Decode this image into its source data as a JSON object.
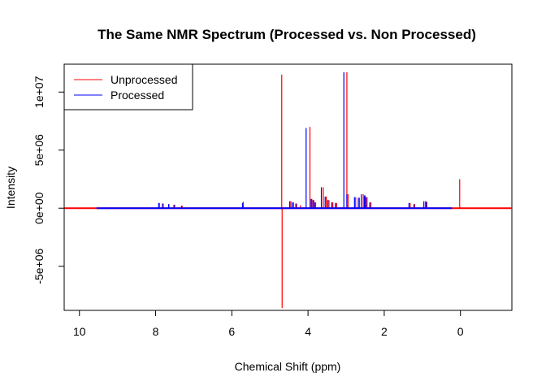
{
  "chart_data": {
    "type": "line",
    "title": "The Same NMR Spectrum (Processed vs. Non Processed)",
    "xlabel": "Chemical Shift (ppm)",
    "ylabel": "Intensity",
    "xlim": [
      10.4,
      -1.35
    ],
    "ylim": [
      -8800000,
      12400000
    ],
    "x_reversed": true,
    "x_ticks": [
      10,
      8,
      6,
      4,
      2,
      0
    ],
    "x_tick_labels": [
      "10",
      "8",
      "6",
      "4",
      "2",
      "0"
    ],
    "y_ticks": [
      -5000000,
      0,
      5000000,
      10000000
    ],
    "y_tick_labels": [
      "-5e+06",
      "0e+00",
      "5e+06",
      "1e+07"
    ],
    "grid": false,
    "legend_position": "top-left",
    "series": [
      {
        "name": "Unprocessed",
        "color": "#FF0000",
        "baseline_range": [
          10.4,
          -1.35
        ],
        "peaks": [
          [
            7.9,
            450000
          ],
          [
            7.8,
            400000
          ],
          [
            7.65,
            350000
          ],
          [
            7.5,
            300000
          ],
          [
            7.3,
            200000
          ],
          [
            5.7,
            550000
          ],
          [
            4.69,
            11500000
          ],
          [
            4.68,
            -8600000
          ],
          [
            4.45,
            600000
          ],
          [
            4.38,
            500000
          ],
          [
            4.3,
            400000
          ],
          [
            4.2,
            250000
          ],
          [
            3.95,
            7000000
          ],
          [
            3.9,
            800000
          ],
          [
            3.85,
            700000
          ],
          [
            3.8,
            500000
          ],
          [
            3.6,
            1800000
          ],
          [
            3.52,
            1000000
          ],
          [
            3.45,
            700000
          ],
          [
            3.35,
            500000
          ],
          [
            3.25,
            450000
          ],
          [
            2.98,
            11700000
          ],
          [
            2.95,
            1200000
          ],
          [
            2.75,
            950000
          ],
          [
            2.65,
            900000
          ],
          [
            2.55,
            1200000
          ],
          [
            2.5,
            1100000
          ],
          [
            2.45,
            950000
          ],
          [
            2.35,
            500000
          ],
          [
            1.32,
            450000
          ],
          [
            1.2,
            350000
          ],
          [
            0.92,
            600000
          ],
          [
            0.88,
            550000
          ],
          [
            0.02,
            2500000
          ]
        ]
      },
      {
        "name": "Processed",
        "color": "#0000FF",
        "baseline_range": [
          9.55,
          0.22
        ],
        "peaks": [
          [
            7.92,
            450000
          ],
          [
            7.82,
            400000
          ],
          [
            7.66,
            350000
          ],
          [
            7.52,
            300000
          ],
          [
            7.32,
            200000
          ],
          [
            5.72,
            450000
          ],
          [
            4.48,
            600000
          ],
          [
            4.41,
            500000
          ],
          [
            4.32,
            400000
          ],
          [
            4.05,
            6900000
          ],
          [
            3.92,
            800000
          ],
          [
            3.87,
            700000
          ],
          [
            3.82,
            500000
          ],
          [
            3.65,
            1800000
          ],
          [
            3.55,
            1000000
          ],
          [
            3.48,
            700000
          ],
          [
            3.38,
            500000
          ],
          [
            3.28,
            450000
          ],
          [
            3.06,
            11700000
          ],
          [
            2.98,
            1200000
          ],
          [
            2.78,
            950000
          ],
          [
            2.68,
            900000
          ],
          [
            2.6,
            1200000
          ],
          [
            2.52,
            1100000
          ],
          [
            2.48,
            950000
          ],
          [
            2.38,
            500000
          ],
          [
            1.35,
            450000
          ],
          [
            1.22,
            350000
          ],
          [
            0.96,
            600000
          ],
          [
            0.9,
            550000
          ]
        ]
      }
    ]
  }
}
